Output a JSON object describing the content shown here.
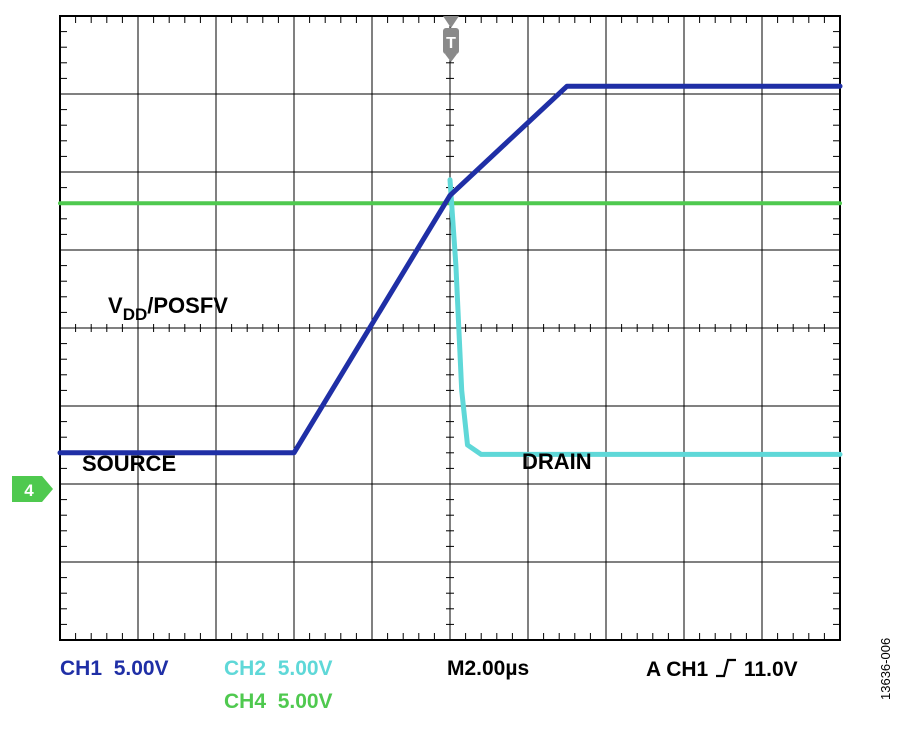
{
  "chart_data": {
    "type": "line",
    "title": "",
    "xlabel": "",
    "ylabel": "",
    "x_unit": "µs",
    "y_unit": "V",
    "grid": true,
    "x_divisions": 10,
    "y_divisions": 8,
    "xlim": [
      -10,
      10
    ],
    "ylim": [
      -20,
      20
    ],
    "series": [
      {
        "name": "SOURCE",
        "channel": "CH1",
        "color": "#1f2fa6",
        "points": [
          [
            -10,
            -8
          ],
          [
            -4,
            -8
          ],
          [
            0,
            8.5
          ],
          [
            3,
            15.5
          ],
          [
            10,
            15.5
          ]
        ]
      },
      {
        "name": "DRAIN",
        "channel": "CH2",
        "color": "#5fd8d8",
        "points": [
          [
            0,
            9.5
          ],
          [
            0.15,
            4
          ],
          [
            0.3,
            -4
          ],
          [
            0.45,
            -7.5
          ],
          [
            0.8,
            -8.1
          ],
          [
            10,
            -8.1
          ]
        ]
      },
      {
        "name": "VDD/POSFV",
        "channel": "CH4",
        "color": "#4fc94f",
        "points": [
          [
            -10,
            8
          ],
          [
            10,
            8
          ]
        ]
      }
    ],
    "annotations": {
      "source": "SOURCE",
      "drain": "DRAIN",
      "vdd_main": "V",
      "vdd_sub": "DD",
      "vdd_suffix": "/POSFV",
      "trigger_marker": "T",
      "ground_marker": "4"
    }
  },
  "readout": {
    "ch1_name": "CH1",
    "ch1_scale": "5.00V",
    "ch2_name": "CH2",
    "ch2_scale": "5.00V",
    "ch4_name": "CH4",
    "ch4_scale": "5.00V",
    "timebase": "M2.00µs",
    "trigger_source": "A  CH1",
    "trigger_level": "11.0V"
  },
  "figure_id": "13636-006"
}
